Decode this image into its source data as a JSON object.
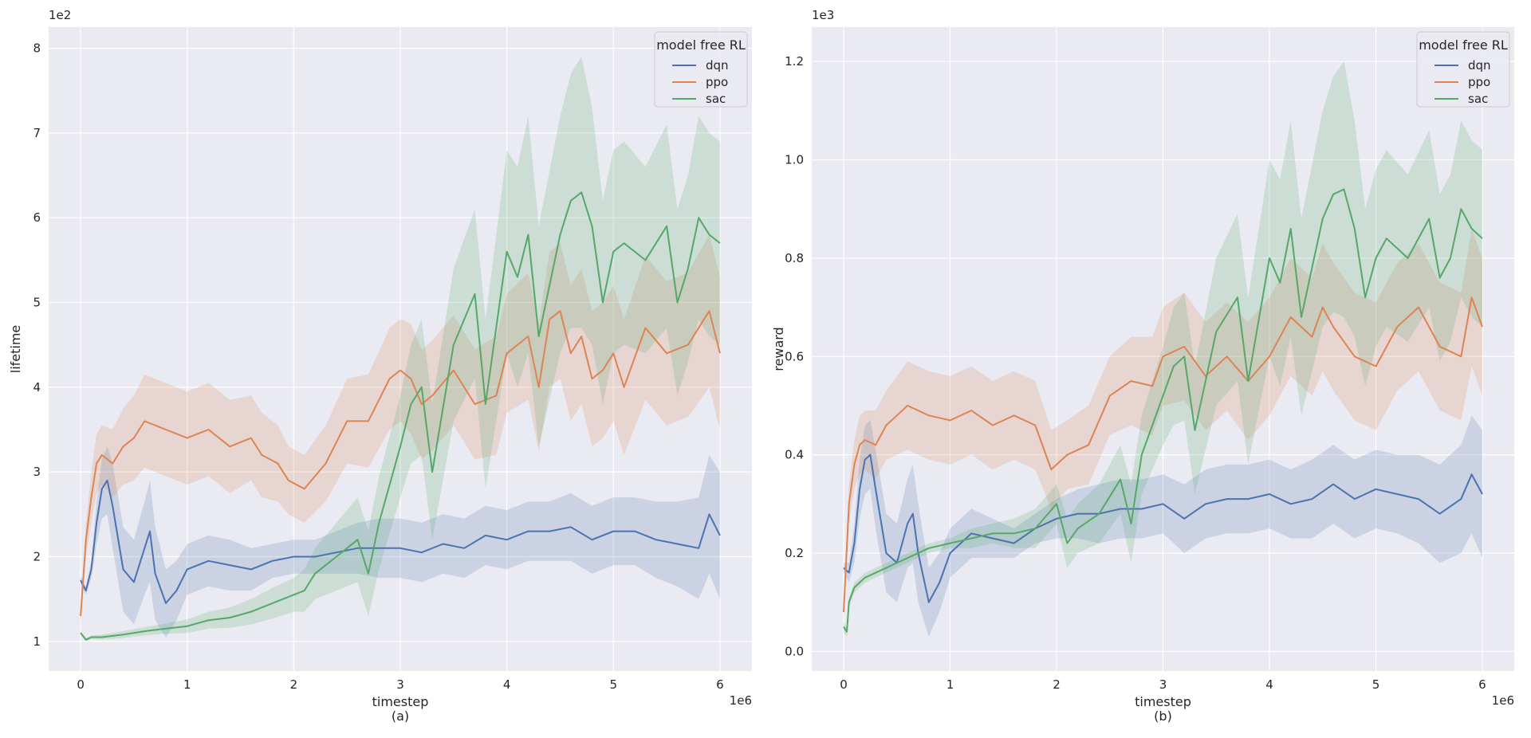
{
  "figure": {
    "type": "two-panel line chart with confidence bands"
  },
  "chart_data": [
    {
      "type": "line",
      "id": "a",
      "caption": "(a)",
      "xlabel": "timestep",
      "ylabel": "lifetime",
      "x_offset_label": "1e6",
      "y_offset_label": "1e2",
      "xlim": [
        -0.3,
        6.3
      ],
      "ylim": [
        0.65,
        8.25
      ],
      "xticks": [
        0,
        1,
        2,
        3,
        4,
        5,
        6
      ],
      "xtick_labels": [
        "0",
        "1",
        "2",
        "3",
        "4",
        "5",
        "6"
      ],
      "yticks": [
        1,
        2,
        3,
        4,
        5,
        6,
        7,
        8
      ],
      "ytick_labels": [
        "1",
        "2",
        "3",
        "4",
        "5",
        "6",
        "7",
        "8"
      ],
      "grid": true,
      "legend": {
        "title": "model free RL",
        "position": "top-right",
        "entries": [
          "dqn",
          "ppo",
          "sac"
        ]
      },
      "series": [
        {
          "name": "dqn",
          "color": "#4c72b0",
          "x": [
            0,
            0.05,
            0.1,
            0.15,
            0.2,
            0.25,
            0.3,
            0.4,
            0.5,
            0.6,
            0.65,
            0.7,
            0.8,
            0.9,
            1.0,
            1.2,
            1.4,
            1.6,
            1.8,
            2.0,
            2.2,
            2.4,
            2.6,
            2.8,
            3.0,
            3.2,
            3.4,
            3.6,
            3.8,
            4.0,
            4.2,
            4.4,
            4.6,
            4.8,
            5.0,
            5.2,
            5.4,
            5.6,
            5.8,
            5.9,
            6.0
          ],
          "y": [
            1.72,
            1.6,
            1.85,
            2.4,
            2.8,
            2.9,
            2.6,
            1.85,
            1.7,
            2.1,
            2.3,
            1.8,
            1.45,
            1.6,
            1.85,
            1.95,
            1.9,
            1.85,
            1.95,
            2.0,
            2.0,
            2.05,
            2.1,
            2.1,
            2.1,
            2.05,
            2.15,
            2.1,
            2.25,
            2.2,
            2.3,
            2.3,
            2.35,
            2.2,
            2.3,
            2.3,
            2.2,
            2.15,
            2.1,
            2.5,
            2.25
          ],
          "band": [
            0.05,
            0.05,
            0.1,
            0.25,
            0.35,
            0.4,
            0.5,
            0.5,
            0.5,
            0.55,
            0.6,
            0.55,
            0.4,
            0.35,
            0.3,
            0.3,
            0.3,
            0.25,
            0.2,
            0.2,
            0.2,
            0.25,
            0.3,
            0.35,
            0.35,
            0.35,
            0.35,
            0.35,
            0.35,
            0.35,
            0.35,
            0.35,
            0.4,
            0.4,
            0.4,
            0.4,
            0.45,
            0.5,
            0.6,
            0.7,
            0.75
          ]
        },
        {
          "name": "ppo",
          "color": "#dd8452",
          "x": [
            0,
            0.05,
            0.1,
            0.15,
            0.2,
            0.3,
            0.4,
            0.5,
            0.6,
            0.8,
            1.0,
            1.2,
            1.4,
            1.6,
            1.7,
            1.85,
            1.95,
            2.1,
            2.3,
            2.5,
            2.7,
            2.9,
            3.0,
            3.1,
            3.2,
            3.3,
            3.5,
            3.7,
            3.9,
            4.0,
            4.2,
            4.3,
            4.4,
            4.5,
            4.6,
            4.7,
            4.8,
            4.9,
            5.0,
            5.1,
            5.3,
            5.5,
            5.7,
            5.9,
            6.0
          ],
          "y": [
            1.3,
            2.2,
            2.7,
            3.1,
            3.2,
            3.1,
            3.3,
            3.4,
            3.6,
            3.5,
            3.4,
            3.5,
            3.3,
            3.4,
            3.2,
            3.1,
            2.9,
            2.8,
            3.1,
            3.6,
            3.6,
            4.1,
            4.2,
            4.1,
            3.8,
            3.9,
            4.2,
            3.8,
            3.9,
            4.4,
            4.6,
            4.0,
            4.8,
            4.9,
            4.4,
            4.6,
            4.1,
            4.2,
            4.4,
            4.0,
            4.7,
            4.4,
            4.5,
            4.9,
            4.4
          ],
          "band": [
            0.1,
            0.2,
            0.3,
            0.35,
            0.35,
            0.4,
            0.45,
            0.5,
            0.55,
            0.55,
            0.55,
            0.55,
            0.55,
            0.5,
            0.5,
            0.45,
            0.4,
            0.4,
            0.45,
            0.5,
            0.55,
            0.6,
            0.6,
            0.65,
            0.65,
            0.65,
            0.65,
            0.65,
            0.7,
            0.7,
            0.75,
            0.75,
            0.8,
            0.8,
            0.8,
            0.8,
            0.8,
            0.8,
            0.8,
            0.8,
            0.85,
            0.85,
            0.85,
            0.9,
            0.9
          ]
        },
        {
          "name": "sac",
          "color": "#55a868",
          "x": [
            0,
            0.05,
            0.1,
            0.2,
            0.4,
            0.6,
            0.8,
            1.0,
            1.2,
            1.4,
            1.6,
            1.8,
            2.0,
            2.1,
            2.2,
            2.4,
            2.6,
            2.7,
            2.8,
            3.0,
            3.1,
            3.2,
            3.3,
            3.5,
            3.7,
            3.8,
            4.0,
            4.1,
            4.2,
            4.3,
            4.5,
            4.6,
            4.7,
            4.8,
            4.9,
            5.0,
            5.1,
            5.3,
            5.5,
            5.6,
            5.7,
            5.8,
            5.9,
            6.0
          ],
          "y": [
            1.1,
            1.02,
            1.05,
            1.05,
            1.08,
            1.12,
            1.15,
            1.18,
            1.25,
            1.28,
            1.35,
            1.45,
            1.55,
            1.6,
            1.8,
            2.0,
            2.2,
            1.8,
            2.4,
            3.3,
            3.8,
            4.0,
            3.0,
            4.5,
            5.1,
            3.8,
            5.6,
            5.3,
            5.8,
            4.6,
            5.8,
            6.2,
            6.3,
            5.9,
            5.0,
            5.6,
            5.7,
            5.5,
            5.9,
            5.0,
            5.4,
            6.0,
            5.8,
            5.7
          ],
          "band": [
            0.02,
            0.02,
            0.02,
            0.03,
            0.04,
            0.05,
            0.06,
            0.08,
            0.1,
            0.12,
            0.15,
            0.18,
            0.2,
            0.25,
            0.3,
            0.4,
            0.5,
            0.5,
            0.55,
            0.6,
            0.7,
            0.8,
            0.8,
            0.9,
            1.0,
            1.0,
            1.2,
            1.3,
            1.4,
            1.3,
            1.4,
            1.5,
            1.6,
            1.4,
            1.2,
            1.2,
            1.2,
            1.1,
            1.2,
            1.1,
            1.1,
            1.2,
            1.2,
            1.2
          ]
        }
      ]
    },
    {
      "type": "line",
      "id": "b",
      "caption": "(b)",
      "xlabel": "timestep",
      "ylabel": "reward",
      "x_offset_label": "1e6",
      "y_offset_label": "1e3",
      "xlim": [
        -0.3,
        6.3
      ],
      "ylim": [
        -0.04,
        1.27
      ],
      "xticks": [
        0,
        1,
        2,
        3,
        4,
        5,
        6
      ],
      "xtick_labels": [
        "0",
        "1",
        "2",
        "3",
        "4",
        "5",
        "6"
      ],
      "yticks": [
        0.0,
        0.2,
        0.4,
        0.6,
        0.8,
        1.0,
        1.2
      ],
      "ytick_labels": [
        "0.0",
        "0.2",
        "0.4",
        "0.6",
        "0.8",
        "1.0",
        "1.2"
      ],
      "grid": true,
      "legend": {
        "title": "model free RL",
        "position": "top-right",
        "entries": [
          "dqn",
          "ppo",
          "sac"
        ]
      },
      "series": [
        {
          "name": "dqn",
          "color": "#4c72b0",
          "x": [
            0,
            0.05,
            0.1,
            0.15,
            0.2,
            0.25,
            0.3,
            0.4,
            0.5,
            0.6,
            0.65,
            0.7,
            0.8,
            0.9,
            1.0,
            1.2,
            1.4,
            1.6,
            1.8,
            2.0,
            2.2,
            2.4,
            2.6,
            2.8,
            3.0,
            3.2,
            3.4,
            3.6,
            3.8,
            4.0,
            4.2,
            4.4,
            4.6,
            4.8,
            5.0,
            5.2,
            5.4,
            5.6,
            5.8,
            5.9,
            6.0
          ],
          "y": [
            0.17,
            0.16,
            0.22,
            0.33,
            0.39,
            0.4,
            0.33,
            0.2,
            0.18,
            0.26,
            0.28,
            0.2,
            0.1,
            0.14,
            0.2,
            0.24,
            0.23,
            0.22,
            0.25,
            0.27,
            0.28,
            0.28,
            0.29,
            0.29,
            0.3,
            0.27,
            0.3,
            0.31,
            0.31,
            0.32,
            0.3,
            0.31,
            0.34,
            0.31,
            0.33,
            0.32,
            0.31,
            0.28,
            0.31,
            0.36,
            0.32
          ],
          "band": [
            0.01,
            0.02,
            0.04,
            0.06,
            0.07,
            0.07,
            0.08,
            0.08,
            0.08,
            0.09,
            0.1,
            0.1,
            0.07,
            0.06,
            0.05,
            0.05,
            0.04,
            0.03,
            0.03,
            0.04,
            0.05,
            0.06,
            0.06,
            0.06,
            0.06,
            0.07,
            0.07,
            0.07,
            0.07,
            0.07,
            0.07,
            0.08,
            0.08,
            0.08,
            0.08,
            0.08,
            0.09,
            0.1,
            0.11,
            0.12,
            0.13
          ]
        },
        {
          "name": "ppo",
          "color": "#dd8452",
          "x": [
            0,
            0.05,
            0.1,
            0.15,
            0.2,
            0.3,
            0.4,
            0.5,
            0.6,
            0.8,
            1.0,
            1.2,
            1.4,
            1.6,
            1.8,
            1.95,
            2.1,
            2.3,
            2.5,
            2.7,
            2.9,
            3.0,
            3.2,
            3.4,
            3.6,
            3.8,
            4.0,
            4.2,
            4.4,
            4.5,
            4.6,
            4.8,
            5.0,
            5.2,
            5.4,
            5.6,
            5.8,
            5.9,
            6.0
          ],
          "y": [
            0.08,
            0.3,
            0.38,
            0.42,
            0.43,
            0.42,
            0.46,
            0.48,
            0.5,
            0.48,
            0.47,
            0.49,
            0.46,
            0.48,
            0.46,
            0.37,
            0.4,
            0.42,
            0.52,
            0.55,
            0.54,
            0.6,
            0.62,
            0.56,
            0.6,
            0.55,
            0.6,
            0.68,
            0.64,
            0.7,
            0.66,
            0.6,
            0.58,
            0.66,
            0.7,
            0.62,
            0.6,
            0.72,
            0.66
          ],
          "band": [
            0.02,
            0.04,
            0.05,
            0.06,
            0.06,
            0.07,
            0.07,
            0.08,
            0.09,
            0.09,
            0.09,
            0.09,
            0.09,
            0.09,
            0.09,
            0.08,
            0.07,
            0.08,
            0.08,
            0.09,
            0.1,
            0.1,
            0.11,
            0.11,
            0.11,
            0.12,
            0.12,
            0.12,
            0.12,
            0.13,
            0.13,
            0.13,
            0.13,
            0.13,
            0.13,
            0.13,
            0.13,
            0.14,
            0.14
          ]
        },
        {
          "name": "sac",
          "color": "#55a868",
          "x": [
            0,
            0.03,
            0.05,
            0.1,
            0.2,
            0.4,
            0.6,
            0.8,
            1.0,
            1.2,
            1.4,
            1.6,
            1.8,
            2.0,
            2.1,
            2.2,
            2.4,
            2.6,
            2.7,
            2.8,
            3.0,
            3.1,
            3.2,
            3.3,
            3.5,
            3.7,
            3.8,
            4.0,
            4.1,
            4.2,
            4.3,
            4.5,
            4.6,
            4.7,
            4.8,
            4.9,
            5.0,
            5.1,
            5.3,
            5.5,
            5.6,
            5.7,
            5.8,
            5.9,
            6.0
          ],
          "y": [
            0.05,
            0.04,
            0.1,
            0.13,
            0.15,
            0.17,
            0.19,
            0.21,
            0.22,
            0.23,
            0.24,
            0.24,
            0.25,
            0.3,
            0.22,
            0.25,
            0.28,
            0.35,
            0.26,
            0.4,
            0.52,
            0.58,
            0.6,
            0.45,
            0.65,
            0.72,
            0.55,
            0.8,
            0.75,
            0.86,
            0.68,
            0.88,
            0.93,
            0.94,
            0.86,
            0.72,
            0.8,
            0.84,
            0.8,
            0.88,
            0.76,
            0.8,
            0.9,
            0.86,
            0.84
          ],
          "band": [
            0.01,
            0.01,
            0.01,
            0.01,
            0.01,
            0.01,
            0.01,
            0.01,
            0.01,
            0.02,
            0.02,
            0.03,
            0.04,
            0.04,
            0.05,
            0.05,
            0.06,
            0.07,
            0.08,
            0.08,
            0.1,
            0.12,
            0.13,
            0.13,
            0.15,
            0.17,
            0.17,
            0.2,
            0.21,
            0.22,
            0.2,
            0.22,
            0.24,
            0.26,
            0.22,
            0.18,
            0.18,
            0.18,
            0.17,
            0.18,
            0.17,
            0.17,
            0.18,
            0.18,
            0.18
          ]
        }
      ]
    }
  ]
}
